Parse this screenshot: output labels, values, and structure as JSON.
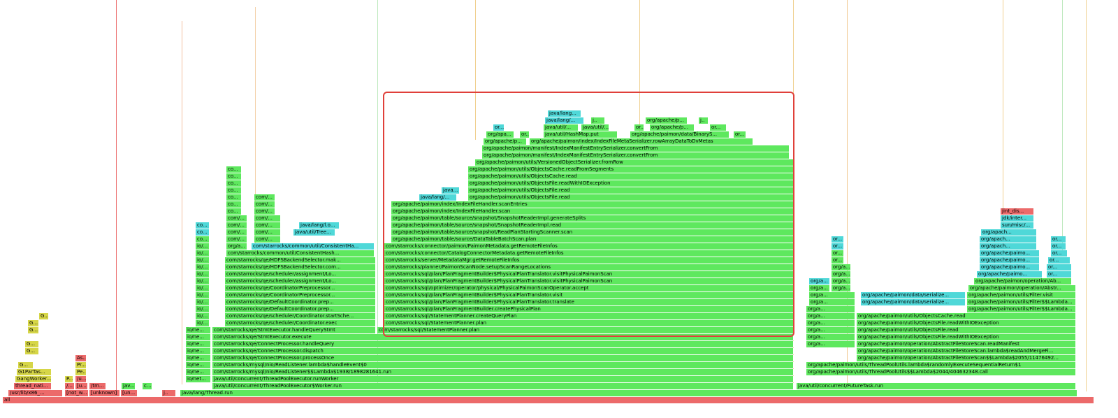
{
  "colors": {
    "java": "#5ee85e",
    "libc": "#ec6a6a",
    "cpp": "#d6d648",
    "kernel": "#ff9a1f",
    "inlined": "#4fd8d8",
    "highlight": "#e0403a"
  },
  "frames": {
    "root": "all",
    "r1_a": "/usr/lib/x86_...",
    "r1_b": "[not_w...",
    "r1_c": "[unknown]",
    "r1_d": "[un...",
    "r1_e": "j..",
    "r1_thread_run": "java/lang/Thread.run",
    "r2_thread_nati": "thread_nati...",
    "r2_a": "/...",
    "r2_b": "[u...",
    "r2_c": "/tm...",
    "r2_d": "jav...",
    "r2_e": "c...",
    "r2_worker_run": "java/util/concurrent/ThreadPoolExecutor$Worker.run",
    "r2_future_run": "java/util/concurrent/FutureTask.run",
    "r3_gangworker": "GangWorker...",
    "r3_p": "P...",
    "r3_u": "/u...",
    "r3_ionet": "io/net...",
    "r3_runworker": "java/util/concurrent/ThreadPoolExecutor.runWorker",
    "r3_call": "org/apache/paimon/utils/ThreadPoolUtils$$Lambda$2044/404632348.call",
    "r4_g1par": "G1ParTas...",
    "r4_pe": "Pe...",
    "r4_readlistener_run": "com/starrocks/mysql/nio/ReadListener$$Lambda$1938/1898281641.run",
    "r4_returned": "org/apache/paimon/utils/ThreadPoolUtils$$Lambda$2045/1147649...",
    "r5_g": "G...",
    "r5_pr": "Pr...",
    "r5_handleevent": "com/starrocks/mysql/nio/ReadListener.lambda$handleEvent$0",
    "r5_randomly": "org/apache/paimon/utils/ThreadPoolUtils.lambda$randomlyExecuteSequentialReturn$1",
    "r6_as": "As...",
    "r6_processonce": "com/starrocks/qe/ConnectProcessor.processOnce",
    "r6_lambda2055": "org/apache/paimon/operation/AbstractFileStoreScan$$Lambda$2055/11476492...",
    "r7_dispatch": "com/starrocks/qe/ConnectProcessor.dispatch",
    "r7_readmerge": "org/apache/paimon/operation/AbstractFileStoreScan.lambda$readAndMergeFi...",
    "r8_handlequery": "com/starrocks/qe/ConnectProcessor.handleQuery",
    "r8_readmanifest": "org/apache/paimon/operation/AbstractFileStoreScan.readManifest",
    "r9_stmtexecute": "com/starrocks/qe/StmtExecutor.execute",
    "r9_readwithio": "org/apache/paimon/utils/ObjectsFile.readWithIOException",
    "r10_handlequerystmt": "com/starrocks/qe/StmtExecutor.handleQueryStmt",
    "r10_planner_plan": "com/starrocks/sql/StatementPlanner.plan",
    "r10_objfile_read": "org/apache/paimon/utils/ObjectsFile.read",
    "r11_coord_exec": "com/starrocks/qe/scheduler/Coordinator.exec",
    "r11_createqueryplan": "com/starrocks/sql/StatementPlanner.createQueryPlan",
    "r11_cache_read": "org/apache/paimon/utils/ObjectsCache.read",
    "r12_startsched": "com/starrocks/qe/scheduler/Coordinator.startSche...",
    "r12_createphysical": "com/starrocks/sql/plan/PlanFragmentBuilder.createPhysicalPlan",
    "r12_filter_visit": "org/apache/paimon/utils/Filter$$Lambda...",
    "r13_defcoord_prep": "com/starrocks/qe/DefaultCoordinator.prep...",
    "r13_translate": "com/starrocks/sql/plan/PlanFragmentBuilder$PhysicalPlanTranslator.translate",
    "r13_ser1": "org/apache/paimon/data/serialize...",
    "r13_filter_visit2": "org/apache/paimon/utils/Filter$$Lambda...",
    "r14_preprocessor": "com/starrocks/qe/CoordinatorPreprocessor...",
    "r14_visit": "com/starrocks/sql/plan/PlanFragmentBuilder$PhysicalPlanTranslator.visit",
    "r14_ser2": "org/apache/paimon/data/serialize...",
    "r14_filter_visit3": "org/apache/paimon/utils/Filter.visit",
    "r15_preprocessor2": "com/starrocks/qe/CoordinatorPreprocessor...",
    "r15_accept": "com/starrocks/sql/optimizer/operator/physical/PhysicalPaimonScanOperator.accept",
    "r15_abstract": "org/apache/paimon/operation/Abstr...",
    "r16_assignment": "com/starrocks/qe/scheduler/assignment/Lo...",
    "r16_visitscan": "com/starrocks/sql/plan/PlanFragmentBuilder$PhysicalPlanTranslator.visitPhysicalPaimonScan",
    "r16_abstract2": "org/apache/paimon/operation/Ab...",
    "r17_assignment2": "com/starrocks/qe/scheduler/assignment/Lo...",
    "r17_visitscan2": "com/starrocks/sql/plan/PlanFragmentBuilder$PhysicalPlanTranslator.visitPhysicalPaimonScan",
    "r18_hdfs": "com/starrocks/qe/HDFSBackendSelector.com...",
    "r18_setupscan": "com/starrocks/planner/PaimonScanNode.setupScanRangeLocations",
    "r19_hdfs2": "com/starrocks/qe/HDFSBackendSelector.mak...",
    "r19_getremote": "com/starrocks/server/MetadataMgr.getRemoteFileInfos",
    "r20_consistenthash": "com/starrocks/common/util/ConsistentHash...",
    "r20_catalog": "com/starrocks/connector/CatalogConnectorMetadata.getRemoteFileInfos",
    "r21_consistenthash2": "com/starrocks/common/util/ConsistentHa...",
    "r21_paimonmeta": "com/starrocks/connector/paimon/PaimonMetadata.getRemoteFileInfos",
    "r22_batchscan": "org/apache/paimon/table/source/DataTableBatchScan.plan",
    "r23_starting": "org/apache/paimon/table/source/snapshot/ReadPlanStartingScanner.scan",
    "r23_treemap": "java/util/Tree...",
    "r24_snapread": "org/apache/paimon/table/source/snapshot/SnapshotReaderImpl.read",
    "r24_javalang": "java/lang/l.o...",
    "r25_gensplits": "org/apache/paimon/table/source/snapshot/SnapshotReaderImpl.generateSplits",
    "r26_ifh_scan": "org/apache/paimon/index/IndexFileHandler.scan",
    "r27_scanentries": "org/apache/paimon/index/IndexFileHandler.scanEntries",
    "r28_objfile_read": "org/apache/paimon/utils/ObjectsFile.read",
    "r28_javalang": "java/lang/...",
    "r29_objfile_read2": "org/apache/paimon/utils/ObjectsFile.read",
    "r29_java": "java...",
    "r30_readwithio": "org/apache/paimon/utils/ObjectsFile.readWithIOException",
    "r31_cache_read": "org/apache/paimon/utils/ObjectsCache.read",
    "r32_readsegments": "org/apache/paimon/utils/ObjectsCache.readFromSegments",
    "r33_fromrow": "org/apache/paimon/utils/VersionedObjectSerializer.fromRow",
    "r34_convertfrom": "org/apache/paimon/manifest/IndexManifestEntrySerializer.convertFrom",
    "r35_convertfrom2": "org/apache/paimon/manifest/IndexManifestEntrySerializer.convertFrom",
    "r36_rowarray": "org/apache/paimon/index/IndexFileMetaSerializer.rowArrayDataToDvMetas",
    "r36_orgp": "org/apache/p...",
    "r37_hashmap": "java/util/HashMap.put",
    "r37_binary": "org/apache/paimon/data/BinaryS...",
    "r37_orgapa": "org/apa...",
    "r38_javautil": "java/util/...",
    "r38_orgapacheP": "org/apache/p...",
    "r38_javalang2": "java/lang/...",
    "r39_javalang3": "java/lang...",
    "misc_co": "co...",
    "misc_com": "com/...",
    "misc_ionet": "io/ne...",
    "misc_io": "io/...",
    "misc_org": "org/a...",
    "misc_or": "or...",
    "misc_jdk": "jdk/inter...",
    "misc_sun": "sun/misc/...",
    "misc_jint": "jint_dis...",
    "misc_orgapache": "org/apache/paimo...",
    "misc_orgapach": "org/apach..."
  }
}
